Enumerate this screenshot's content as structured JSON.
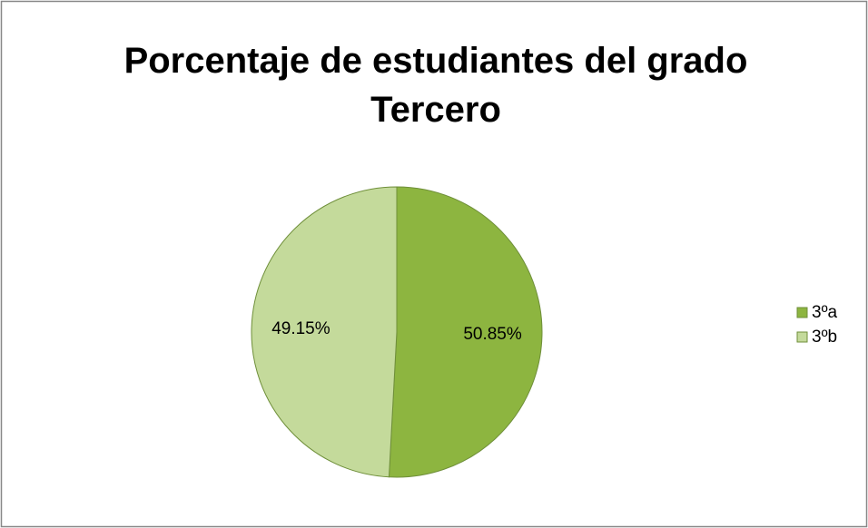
{
  "chart_data": {
    "type": "pie",
    "title": "Porcentaje de estudiantes del grado Tercero",
    "categories": [
      "3ºa",
      "3ºb"
    ],
    "values": [
      50.85,
      49.15
    ],
    "value_labels": [
      "50.85%",
      "49.15%"
    ],
    "colors": [
      "#8db540",
      "#c4da9b"
    ],
    "legend": "right"
  }
}
